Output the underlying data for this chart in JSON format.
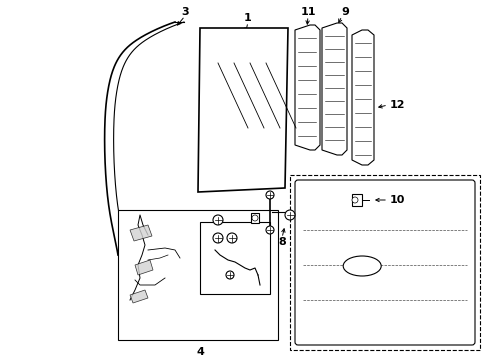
{
  "bg_color": "#ffffff",
  "line_color": "#000000",
  "figsize": [
    4.89,
    3.6
  ],
  "dpi": 100,
  "seal_color": "#000000",
  "glass_fill": "#f8f8f8"
}
